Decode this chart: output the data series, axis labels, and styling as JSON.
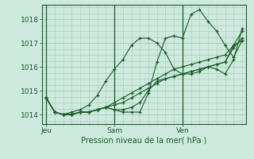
{
  "title": "Pression niveau de la mer( hPa )",
  "xlabel_ticks": [
    "Jeu",
    "Sam",
    "Ven"
  ],
  "xlabel_tick_positions": [
    0,
    8,
    16
  ],
  "ylabel_ticks": [
    1014,
    1015,
    1016,
    1017,
    1018
  ],
  "background_color": "#ceeade",
  "grid_color": "#aacaba",
  "line_color": "#1a5c2a",
  "ylim": [
    1013.6,
    1018.6
  ],
  "xlim": [
    -0.5,
    23.5
  ],
  "lines": [
    [
      1014.7,
      1014.1,
      1014.0,
      1014.0,
      1014.1,
      1014.1,
      1014.2,
      1014.3,
      1014.2,
      1014.1,
      1014.1,
      1014.1,
      1014.9,
      1016.2,
      1017.2,
      1017.3,
      1017.2,
      1018.2,
      1018.4,
      1017.9,
      1017.5,
      1016.9,
      1016.4,
      1017.1
    ],
    [
      1014.7,
      1014.1,
      1014.0,
      1014.0,
      1014.1,
      1014.1,
      1014.2,
      1014.3,
      1014.2,
      1014.2,
      1014.3,
      1014.5,
      1015.0,
      1015.4,
      1015.5,
      1015.6,
      1015.7,
      1015.8,
      1015.9,
      1016.0,
      1016.1,
      1016.2,
      1016.9,
      1017.1
    ],
    [
      1014.7,
      1014.1,
      1014.0,
      1014.0,
      1014.1,
      1014.1,
      1014.2,
      1014.3,
      1014.4,
      1014.5,
      1014.7,
      1014.9,
      1015.1,
      1015.3,
      1015.5,
      1015.6,
      1015.7,
      1015.8,
      1015.9,
      1016.0,
      1016.1,
      1016.2,
      1016.8,
      1017.2
    ],
    [
      1014.7,
      1014.1,
      1014.0,
      1014.0,
      1014.1,
      1014.1,
      1014.2,
      1014.3,
      1014.5,
      1014.7,
      1014.9,
      1015.1,
      1015.3,
      1015.5,
      1015.7,
      1015.9,
      1016.0,
      1016.1,
      1016.2,
      1016.3,
      1016.4,
      1016.5,
      1016.9,
      1017.5
    ],
    [
      1014.7,
      1014.1,
      1014.0,
      1014.1,
      1014.2,
      1014.4,
      1014.8,
      1015.4,
      1015.9,
      1016.3,
      1016.9,
      1017.2,
      1017.2,
      1017.0,
      1016.6,
      1015.9,
      1015.7,
      1015.7,
      1015.8,
      1016.0,
      1015.9,
      1015.7,
      1016.3,
      1017.6
    ]
  ]
}
